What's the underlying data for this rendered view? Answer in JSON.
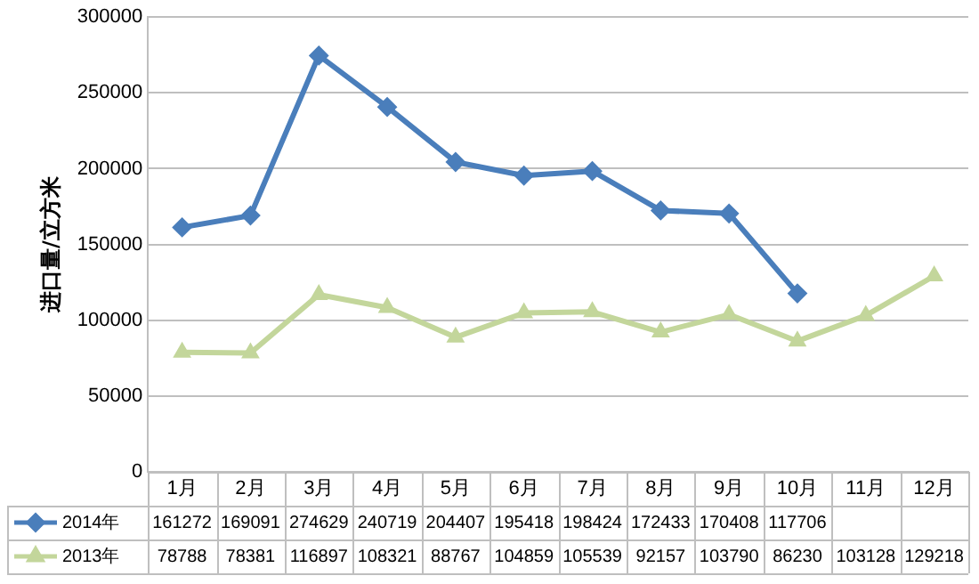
{
  "chart_data": {
    "type": "line",
    "ylabel": "进口量/立方米",
    "categories": [
      "1月",
      "2月",
      "3月",
      "4月",
      "5月",
      "6月",
      "7月",
      "8月",
      "9月",
      "10月",
      "11月",
      "12月"
    ],
    "series": [
      {
        "name": "2014年",
        "color": "#4a7ebb",
        "marker": "diamond",
        "values": [
          161272,
          169091,
          274629,
          240719,
          204407,
          195418,
          198424,
          172433,
          170408,
          117706,
          null,
          null
        ]
      },
      {
        "name": "2013年",
        "color": "#c3d69b",
        "marker": "triangle",
        "values": [
          78788,
          78381,
          116897,
          108321,
          88767,
          104859,
          105539,
          92157,
          103790,
          86230,
          103128,
          129218
        ]
      }
    ],
    "ylim": [
      0,
      300000
    ],
    "yticks": [
      0,
      50000,
      100000,
      150000,
      200000,
      250000,
      300000
    ],
    "grid": "y",
    "legend": "bottom",
    "data_labels": true
  }
}
